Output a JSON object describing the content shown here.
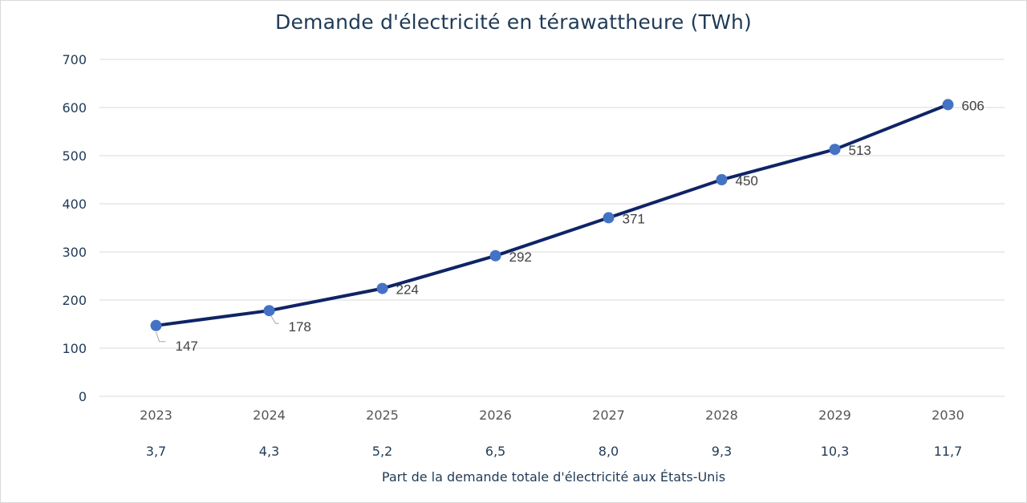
{
  "chart_data": {
    "type": "line",
    "title": "Demande d'électricité en térawattheure (TWh)",
    "categories": [
      "2023",
      "2024",
      "2025",
      "2026",
      "2027",
      "2028",
      "2029",
      "2030"
    ],
    "series": [
      {
        "name": "Demande d'électricité (TWh)",
        "values": [
          147,
          178,
          224,
          292,
          371,
          450,
          513,
          606
        ],
        "labels": [
          "147",
          "178",
          "224",
          "292",
          "371",
          "450",
          "513",
          "606"
        ],
        "color": "#0f2466",
        "marker_color": "#4472c4"
      }
    ],
    "secondary_row": {
      "values": [
        "3,7",
        "4,3",
        "5,2",
        "6,5",
        "8,0",
        "9,3",
        "10,3",
        "11,7"
      ]
    },
    "xlabel": "Part de la demande totale d'électricité aux États-Unis",
    "ylabel": "",
    "ylim": [
      0,
      700
    ],
    "yticks": [
      0,
      100,
      200,
      300,
      400,
      500,
      600,
      700
    ],
    "ytick_labels": [
      "0",
      "100",
      "200",
      "300",
      "400",
      "500",
      "600",
      "700"
    ],
    "grid": true,
    "legend": "none",
    "colors": {
      "line": "#0f2466",
      "marker": "#4472c4",
      "grid": "#d9d9d9",
      "text": "#1f3a56",
      "data_label": "#404040"
    }
  }
}
